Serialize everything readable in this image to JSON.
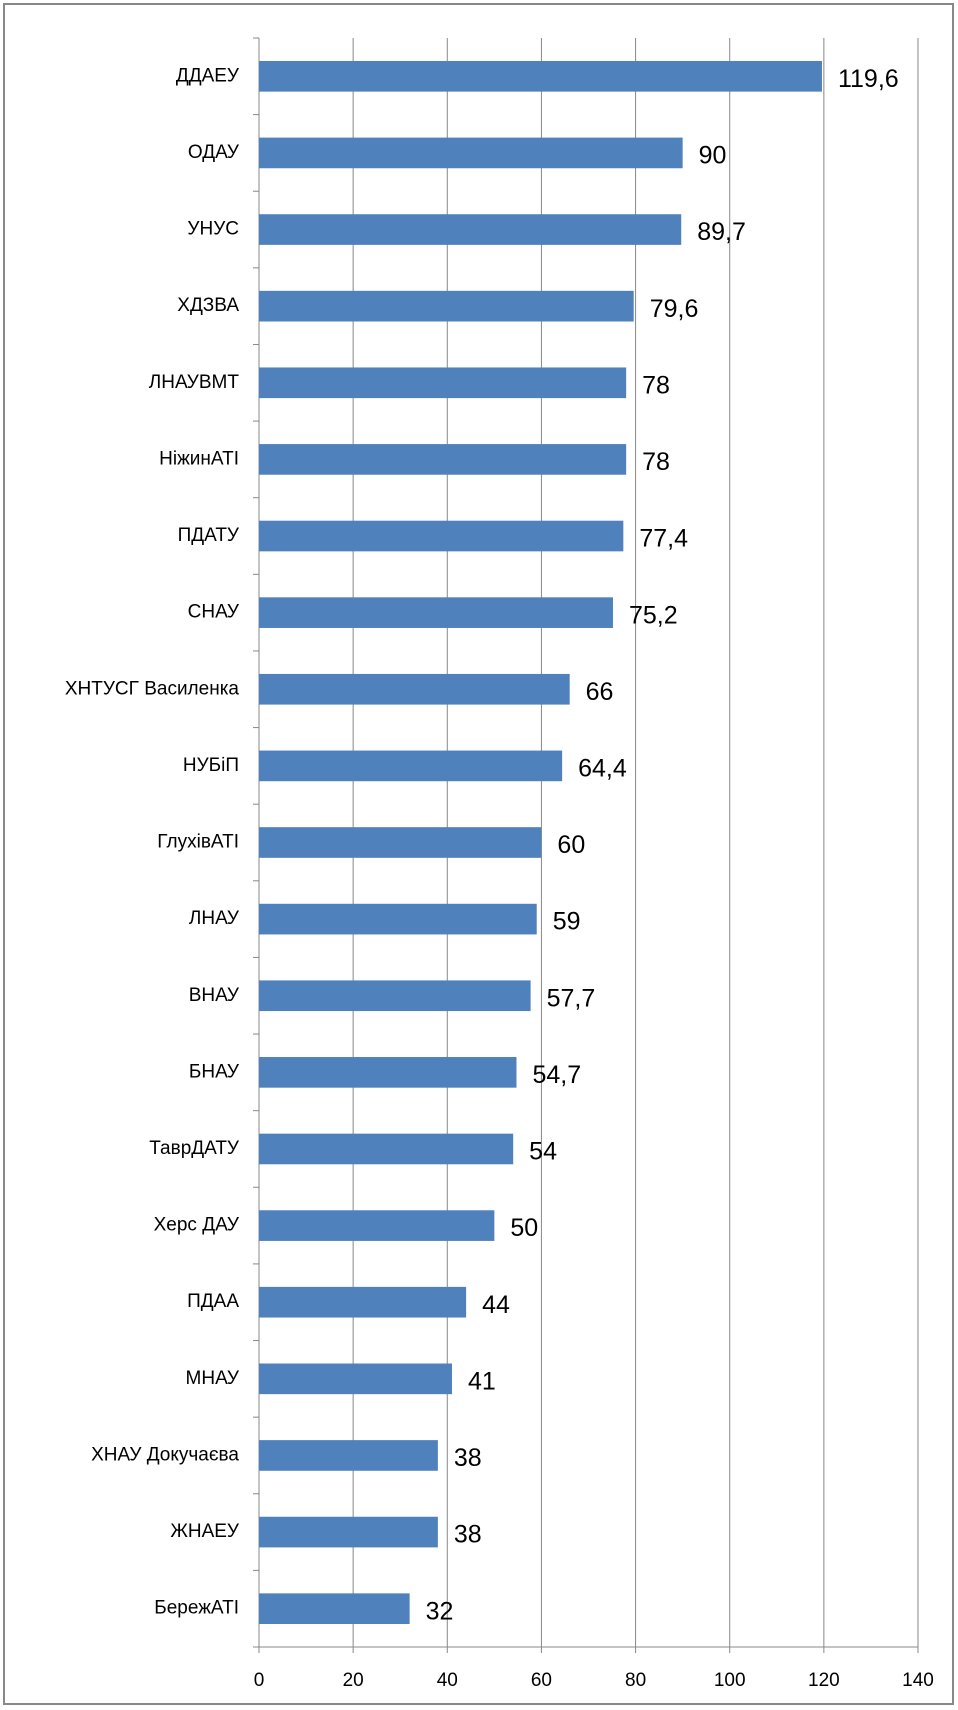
{
  "chart_data": {
    "type": "bar",
    "orientation": "horizontal",
    "categories": [
      "ДДАЕУ",
      "ОДАУ",
      "УНУС",
      "ХДЗВА",
      "ЛНАУВМТ",
      "НіжинАТІ",
      "ПДАТУ",
      "СНАУ",
      "ХНТУСГ Василенка",
      "НУБіП",
      "ГлухівАТІ",
      "ЛНАУ",
      "ВНАУ",
      "БНАУ",
      "ТаврДАТУ",
      "Херс ДАУ",
      "ПДАА",
      "МНАУ",
      "ХНАУ Докучаєва",
      "ЖНАЕУ",
      "БережАТІ"
    ],
    "values": [
      119.6,
      90,
      89.7,
      79.6,
      78,
      78,
      77.4,
      75.2,
      66,
      64.4,
      60,
      59,
      57.7,
      54.7,
      54,
      50,
      44,
      41,
      38,
      38,
      32
    ],
    "value_labels": [
      "119,6",
      "90",
      "89,7",
      "79,6",
      "78",
      "78",
      "77,4",
      "75,2",
      "66",
      "64,4",
      "60",
      "59",
      "57,7",
      "54,7",
      "54",
      "50",
      "44",
      "41",
      "38",
      "38",
      "32"
    ],
    "color": "#4f81bd",
    "xlim": [
      0,
      140
    ],
    "xticks": [
      0,
      20,
      40,
      60,
      80,
      100,
      120,
      140
    ],
    "grid": true
  }
}
